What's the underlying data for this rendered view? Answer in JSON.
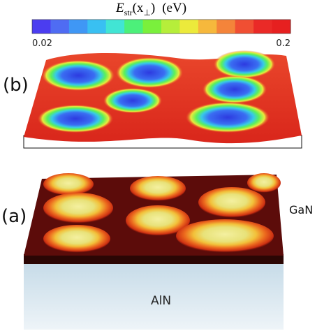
{
  "colorbar": {
    "title_symbol": "E",
    "title_subscript": "str",
    "title_argument": "(x",
    "title_perp": "⊥",
    "title_close": ")",
    "title_unit": "(eV)",
    "min_label": "0.02",
    "max_label": "0.2",
    "colors": [
      "#4b3df0",
      "#4f6cf3",
      "#3f97f5",
      "#39c0f2",
      "#41e5d4",
      "#4cf07a",
      "#7af03c",
      "#b6ee3a",
      "#ecea3b",
      "#f6b83c",
      "#f4843a",
      "#f04f33",
      "#ea2a27",
      "#e62020"
    ]
  },
  "panels": {
    "b_label": "(b)",
    "a_label": "(a)"
  },
  "materials": {
    "top": "GaN",
    "bottom": "AlN"
  }
}
